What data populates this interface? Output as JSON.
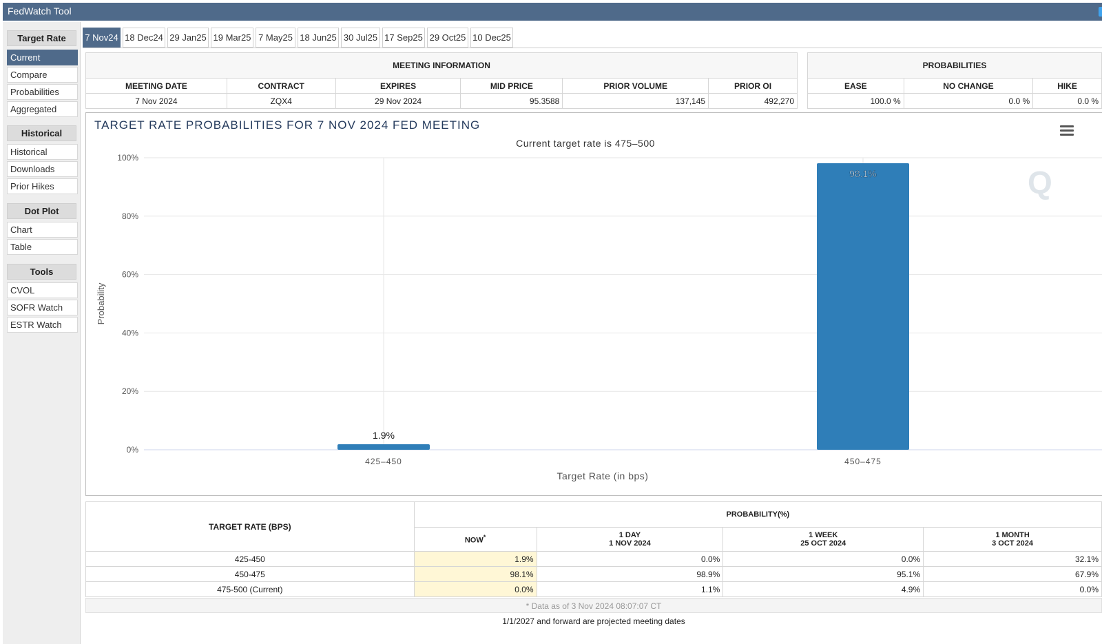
{
  "app": {
    "title": "FedWatch Tool"
  },
  "sidebar": {
    "sections": [
      {
        "header": "Target Rate",
        "items": [
          "Current",
          "Compare",
          "Probabilities",
          "Aggregated"
        ]
      },
      {
        "header": "Historical",
        "items": [
          "Historical",
          "Downloads",
          "Prior Hikes"
        ]
      },
      {
        "header": "Dot Plot",
        "items": [
          "Chart",
          "Table"
        ]
      },
      {
        "header": "Tools",
        "items": [
          "CVOL",
          "SOFR Watch",
          "ESTR Watch"
        ]
      }
    ],
    "active_item": "Current"
  },
  "tabs": [
    "7 Nov24",
    "18 Dec24",
    "29 Jan25",
    "19 Mar25",
    "7 May25",
    "18 Jun25",
    "30 Jul25",
    "17 Sep25",
    "29 Oct25",
    "10 Dec25"
  ],
  "active_tab": "7 Nov24",
  "meeting_info": {
    "header": "MEETING INFORMATION",
    "columns": [
      "MEETING DATE",
      "CONTRACT",
      "EXPIRES",
      "MID PRICE",
      "PRIOR VOLUME",
      "PRIOR OI"
    ],
    "row": [
      "7 Nov 2024",
      "ZQX4",
      "29 Nov 2024",
      "95.3588",
      "137,145",
      "492,270"
    ]
  },
  "probabilities": {
    "header": "PROBABILITIES",
    "columns": [
      "EASE",
      "NO CHANGE",
      "HIKE"
    ],
    "row": [
      "100.0 %",
      "0.0 %",
      "0.0 %"
    ]
  },
  "chart": {
    "title": "TARGET RATE PROBABILITIES FOR 7 NOV 2024 FED MEETING",
    "subtitle": "Current target rate is 475–500",
    "watermark": "Q",
    "menu_icon": "hamburger-menu-icon"
  },
  "chart_data": {
    "type": "bar",
    "title": "TARGET RATE PROBABILITIES FOR 7 NOV 2024 FED MEETING",
    "subtitle": "Current target rate is 475–500",
    "categories": [
      "425–450",
      "450–475"
    ],
    "values": [
      1.9,
      98.1
    ],
    "data_labels": [
      "1.9%",
      "98.1%"
    ],
    "xlabel": "Target Rate (in bps)",
    "ylabel": "Probability",
    "ylim": [
      0,
      100
    ],
    "yticks": [
      "0%",
      "20%",
      "40%",
      "60%",
      "80%",
      "100%"
    ],
    "grid": true,
    "bar_color": "#2f7eb8"
  },
  "prob_table": {
    "rate_header": "TARGET RATE (BPS)",
    "group_header": "PROBABILITY(%)",
    "columns": [
      {
        "l1": "NOW",
        "sup": "*",
        "l2": ""
      },
      {
        "l1": "1 DAY",
        "l2": "1 NOV 2024"
      },
      {
        "l1": "1 WEEK",
        "l2": "25 OCT 2024"
      },
      {
        "l1": "1 MONTH",
        "l2": "3 OCT 2024"
      }
    ],
    "rows": [
      {
        "rate": "425-450",
        "vals": [
          "1.9%",
          "0.0%",
          "0.0%",
          "32.1%"
        ]
      },
      {
        "rate": "450-475",
        "vals": [
          "98.1%",
          "98.9%",
          "95.1%",
          "67.9%"
        ]
      },
      {
        "rate": "475-500 (Current)",
        "vals": [
          "0.0%",
          "1.1%",
          "4.9%",
          "0.0%"
        ]
      }
    ],
    "footnote": "* Data as of 3 Nov 2024 08:07:07 CT",
    "note": "1/1/2027 and forward are projected meeting dates"
  },
  "colors": {
    "brand": "#4f6a8a",
    "bar": "#2f7eb8",
    "now_highlight": "#fff7d6"
  }
}
